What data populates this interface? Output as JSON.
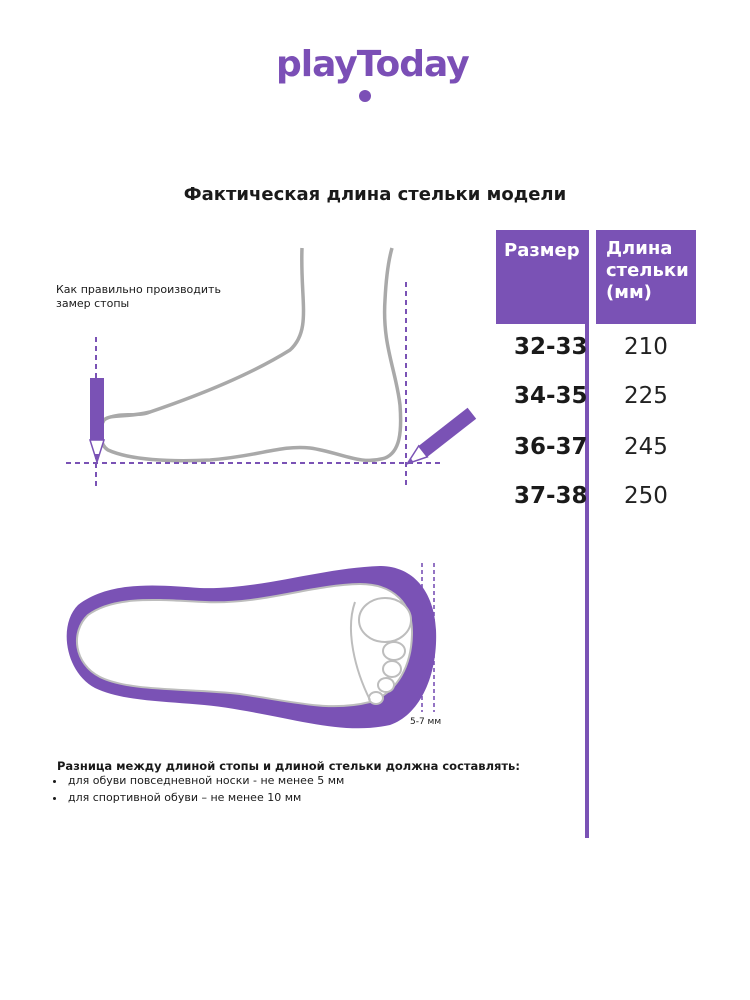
{
  "brand": {
    "name": "playToday",
    "accent": "#7a52b5"
  },
  "title": "Фактическая длина стельки модели",
  "table": {
    "headers": {
      "size": "Размер",
      "length_lines": [
        "Длина",
        "стельки",
        "(мм)"
      ]
    },
    "rows": [
      {
        "size": "32-33",
        "length": "210"
      },
      {
        "size": "34-35",
        "length": "225"
      },
      {
        "size": "36-37",
        "length": "245"
      },
      {
        "size": "37-38",
        "length": "250"
      }
    ]
  },
  "diagram": {
    "measure_note_lines": [
      "Как правильно производить",
      "замер стопы"
    ],
    "gap_label": "5-7 мм"
  },
  "notes": {
    "heading": "Разница между длиной стопы и длиной стельки должна составлять:",
    "items": [
      "для обуви повседневной носки -  не менее 5 мм",
      "для спортивной обуви – не менее 10 мм"
    ]
  }
}
